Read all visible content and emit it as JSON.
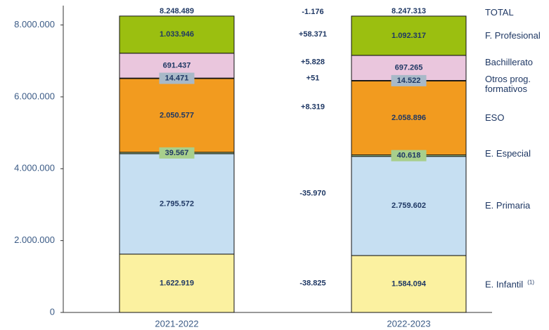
{
  "chart_data": {
    "type": "stacked_bar",
    "categories": [
      "2021-2022",
      "2022-2023"
    ],
    "ylim": [
      0,
      8500000
    ],
    "yticks": [
      0,
      {
        "value": 2000000,
        "label": "2.000.000"
      },
      {
        "value": 4000000,
        "label": "4.000.000"
      },
      {
        "value": 6000000,
        "label": "6.000.000"
      },
      {
        "value": 8000000,
        "label": "8.000.000"
      }
    ],
    "series": [
      {
        "name": "E. Infantil",
        "note": "(1)",
        "color": "#fbf1a0",
        "values": [
          1622919,
          1584094
        ],
        "value_labels": [
          "1.622.919",
          "1.584.094"
        ],
        "change": -38825,
        "change_label": "-38.825"
      },
      {
        "name": "E. Primaria",
        "color": "#c6dff2",
        "values": [
          2795572,
          2759602
        ],
        "value_labels": [
          "2.795.572",
          "2.759.602"
        ],
        "change": -35970,
        "change_label": "-35.970"
      },
      {
        "name": "E. Especial",
        "color": "#a8cf8c",
        "values": [
          39567,
          40618
        ],
        "value_labels": [
          "39.567",
          "40.618"
        ]
      },
      {
        "name": "ESO",
        "color": "#f29b1f",
        "values": [
          2050577,
          2058896
        ],
        "value_labels": [
          "2.050.577",
          "2.058.896"
        ],
        "change": 8319,
        "change_label": "+8.319"
      },
      {
        "name": "Otros prog. formativos",
        "color": "#a8b9c8",
        "values": [
          14471,
          14522
        ],
        "value_labels": [
          "14.471",
          "14.522"
        ],
        "change": 51,
        "change_label": "+51"
      },
      {
        "name": "Bachillerato",
        "color": "#eac6dd",
        "values": [
          691437,
          697265
        ],
        "value_labels": [
          "691.437",
          "697.265"
        ],
        "change": 5828,
        "change_label": "+5.828"
      },
      {
        "name": "F. Profesional",
        "color": "#9bbf10",
        "values": [
          1033946,
          1092317
        ],
        "value_labels": [
          "1.033.946",
          "1.092.317"
        ],
        "change": 58371,
        "change_label": "+58.371"
      }
    ],
    "totals": {
      "name": "TOTAL",
      "values": [
        8248489,
        8247313
      ],
      "value_labels": [
        "8.248.489",
        "8.247.313"
      ],
      "change": -1176,
      "change_label": "-1.176"
    }
  }
}
